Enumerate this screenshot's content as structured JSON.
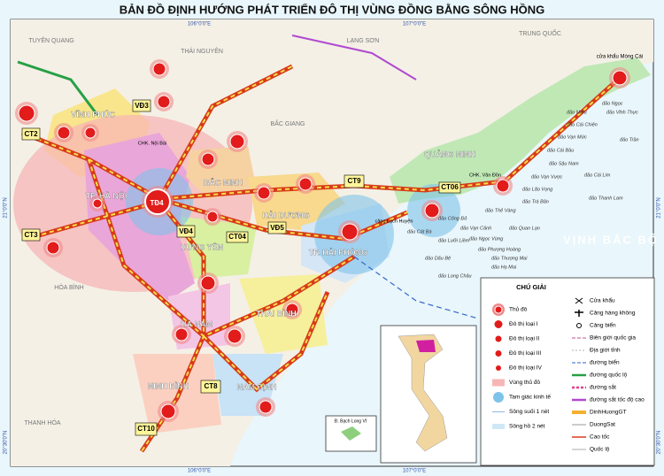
{
  "title": "BẢN ĐỒ ĐỊNH HƯỚNG PHÁT TRIỂN ĐÔ THỊ VÙNG ĐỒNG BẰNG SÔNG HỒNG",
  "regions": [
    "VĨNH PHÚC",
    "TP. HÀ NỘI",
    "BẮC NINH",
    "HẢI DƯƠNG",
    "HƯNG YÊN",
    "TP. HẢI PHÒNG",
    "QUẢNG NINH",
    "HÀ NAM",
    "THÁI BÌNH",
    "NINH BÌNH",
    "NAM ĐỊNH"
  ],
  "neighbors": [
    "TRUNG QUỐC",
    "LẠNG SƠN",
    "BẮC GIANG",
    "THÁI NGUYÊN",
    "TUYÊN QUANG",
    "HÒA BÌNH",
    "THANH HÓA"
  ],
  "routes": [
    "CT2",
    "CT3",
    "VĐ3",
    "VĐ4",
    "VĐ5",
    "CT04",
    "CT06",
    "CT8",
    "CT10",
    "CT9",
    "TĐ4"
  ],
  "places": [
    "cửa khẩu Móng Cái",
    "CHK. Nội Bài",
    "CHK. Vân Đồn",
    "cảng Lạch Huyện"
  ],
  "sea": "VỊNH BẮC BỘ",
  "islands": [
    "đảo Miếu",
    "đảo Vĩnh Thực",
    "đảo Ngọc",
    "đảo Cái Chiên",
    "đảo Trần",
    "đảo Vạn Mức",
    "đảo Cái Bầu",
    "đảo Sậu Nam",
    "đảo Vạn Vược",
    "đảo Cái Lim",
    "đảo Thanh Lam",
    "đảo Lão Vọng",
    "đảo Trà Bản",
    "đảo Thẻ Vàng",
    "đảo Quan Lạn",
    "đảo Vạn Cảnh",
    "đảo Ngọc Vừng",
    "đảo Phượng Hoàng",
    "đảo Thượng Mai",
    "đảo Hạ Mai",
    "đảo Cống Đỏ",
    "đảo Cát Bà",
    "đảo Long Châu",
    "đảo Dấu Bê",
    "đảo Lưỡi Liềm"
  ],
  "coordinates": [
    "106°0'0\"E",
    "107°0'0\"E",
    "21°0'0\"N",
    "20°30'0\"N"
  ],
  "inset": "Đ. Bạch Long Vĩ",
  "legend": {
    "title": "CHÚ GIẢI",
    "items": [
      "Thủ đô",
      "Đô thị loại I",
      "Đô thị loại II",
      "Đô thị loại III",
      "Đô thị loại IV",
      "Vùng thủ đô",
      "Tam giác kinh tế",
      "Sông suối 1 nét",
      "Sông hồ 2 nét",
      "Cửa khẩu",
      "Cảng hàng không",
      "Cảng biển",
      "Biên giới quốc gia",
      "Địa giới tỉnh",
      "đường biển",
      "đường quốc lộ",
      "đường sắt",
      "đường sắt tốc độ cao",
      "DinhHuongGT",
      "DuongSat",
      "Cao tốc",
      "Quốc lộ"
    ]
  }
}
